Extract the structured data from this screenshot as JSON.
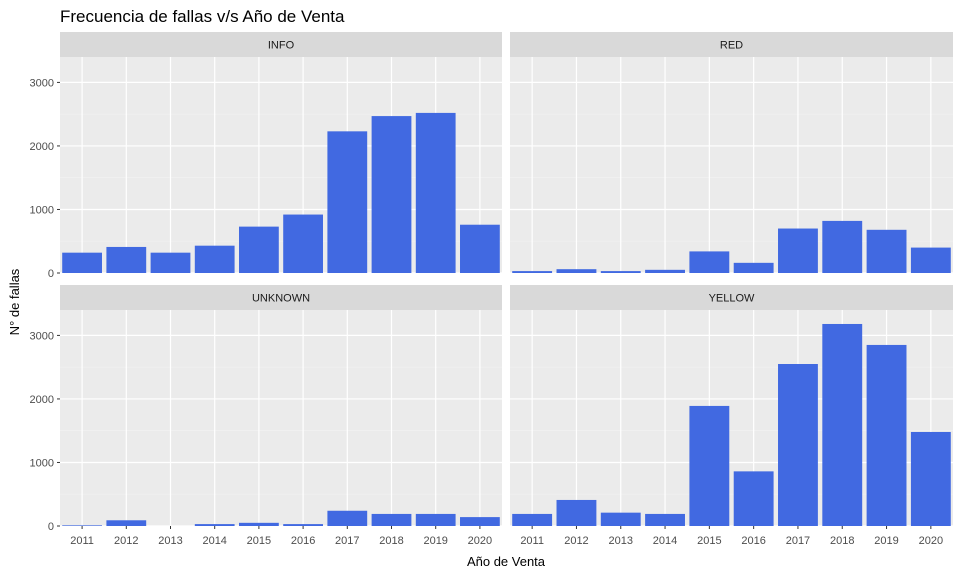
{
  "chart_data": {
    "type": "bar",
    "title": "Frecuencia de fallas v/s Año de Venta",
    "xlabel": "Año de Venta",
    "ylabel": "N° de fallas",
    "categories": [
      "2011",
      "2012",
      "2013",
      "2014",
      "2015",
      "2016",
      "2017",
      "2018",
      "2019",
      "2020"
    ],
    "ylim": [
      0,
      3400
    ],
    "yticks": [
      0,
      1000,
      2000,
      3000
    ],
    "grid": true,
    "bar_color": "#4169E1",
    "panel_bg": "#EBEBEB",
    "strip_bg": "#D9D9D9",
    "facets": [
      {
        "label": "INFO",
        "values": [
          320,
          410,
          320,
          430,
          730,
          920,
          2230,
          2470,
          2520,
          760
        ]
      },
      {
        "label": "RED",
        "values": [
          30,
          60,
          30,
          50,
          340,
          160,
          700,
          820,
          680,
          400
        ]
      },
      {
        "label": "UNKNOWN",
        "values": [
          10,
          90,
          0,
          30,
          50,
          30,
          240,
          190,
          190,
          140
        ]
      },
      {
        "label": "YELLOW",
        "values": [
          190,
          410,
          210,
          190,
          1890,
          860,
          2550,
          3180,
          2850,
          1480
        ]
      }
    ]
  }
}
